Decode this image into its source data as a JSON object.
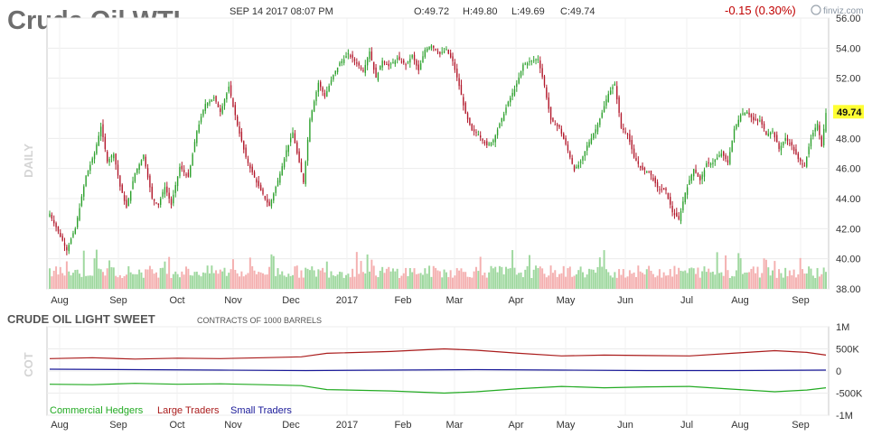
{
  "header": {
    "title": "Crude Oil WTI",
    "datetime": "SEP 14 2017 08:07 PM",
    "open": "O:49.72",
    "high": "H:49.80",
    "low": "L:49.69",
    "close": "C:49.74",
    "change": "-0.15 (0.30%)",
    "brand": "finviz.com",
    "period_label": "DAILY",
    "last_price": "49.74"
  },
  "colors": {
    "up": "#2ca02c",
    "down": "#b2182b",
    "volume_up": "#9fd89f",
    "volume_down": "#f4b0b0",
    "last_price_bg": "#ffff33",
    "change": "#c00000",
    "commercial": "#22aa22",
    "large": "#aa1c1c",
    "small": "#1a1a99"
  },
  "chart_data": [
    {
      "type": "candlestick",
      "ylim": [
        38,
        56
      ],
      "y_ticks": [
        "38.00",
        "40.00",
        "42.00",
        "44.00",
        "46.00",
        "48.00",
        "50.00",
        "52.00",
        "54.00",
        "56.00"
      ],
      "x_ticks": [
        "Aug",
        "Sep",
        "Oct",
        "Nov",
        "Dec",
        "2017",
        "Feb",
        "Mar",
        "Apr",
        "May",
        "Jun",
        "Jul",
        "Aug",
        "Sep"
      ],
      "grid": true,
      "close_anchors": [
        [
          0,
          43.0
        ],
        [
          4,
          41.8
        ],
        [
          8,
          40.6
        ],
        [
          12,
          42.0
        ],
        [
          17,
          45.5
        ],
        [
          21,
          47.0
        ],
        [
          24,
          48.8
        ],
        [
          27,
          46.5
        ],
        [
          30,
          47.0
        ],
        [
          33,
          44.8
        ],
        [
          36,
          43.4
        ],
        [
          40,
          45.7
        ],
        [
          44,
          46.9
        ],
        [
          48,
          44.0
        ],
        [
          51,
          43.6
        ],
        [
          54,
          44.8
        ],
        [
          57,
          43.6
        ],
        [
          61,
          46.1
        ],
        [
          65,
          45.4
        ],
        [
          69,
          48.5
        ],
        [
          73,
          50.3
        ],
        [
          77,
          50.7
        ],
        [
          80,
          49.8
        ],
        [
          84,
          51.4
        ],
        [
          88,
          48.9
        ],
        [
          92,
          46.7
        ],
        [
          96,
          45.4
        ],
        [
          99,
          44.5
        ],
        [
          103,
          43.5
        ],
        [
          107,
          45.2
        ],
        [
          111,
          47.2
        ],
        [
          114,
          48.4
        ],
        [
          116,
          47.0
        ],
        [
          119,
          45.1
        ],
        [
          122,
          49.3
        ],
        [
          126,
          51.7
        ],
        [
          129,
          50.8
        ],
        [
          133,
          52.2
        ],
        [
          136,
          53.0
        ],
        [
          140,
          53.6
        ],
        [
          144,
          53.0
        ],
        [
          147,
          52.5
        ],
        [
          150,
          53.8
        ],
        [
          153,
          52.0
        ],
        [
          156,
          53.2
        ],
        [
          159,
          52.8
        ],
        [
          163,
          53.3
        ],
        [
          167,
          52.9
        ],
        [
          170,
          53.5
        ],
        [
          173,
          52.5
        ],
        [
          176,
          53.9
        ],
        [
          179,
          54.2
        ],
        [
          183,
          53.6
        ],
        [
          186,
          53.9
        ],
        [
          189,
          53.1
        ],
        [
          192,
          51.5
        ],
        [
          195,
          49.6
        ],
        [
          198,
          48.5
        ],
        [
          201,
          48.3
        ],
        [
          205,
          47.5
        ],
        [
          208,
          47.9
        ],
        [
          212,
          49.3
        ],
        [
          215,
          50.4
        ],
        [
          219,
          51.6
        ],
        [
          222,
          52.9
        ],
        [
          225,
          53.1
        ],
        [
          229,
          53.3
        ],
        [
          232,
          51.5
        ],
        [
          235,
          49.2
        ],
        [
          239,
          48.7
        ],
        [
          243,
          47.2
        ],
        [
          246,
          45.9
        ],
        [
          249,
          46.4
        ],
        [
          252,
          47.5
        ],
        [
          256,
          48.6
        ],
        [
          259,
          49.7
        ],
        [
          262,
          51.0
        ],
        [
          265,
          51.6
        ],
        [
          268,
          48.7
        ],
        [
          271,
          48.3
        ],
        [
          274,
          46.7
        ],
        [
          278,
          45.9
        ],
        [
          281,
          45.8
        ],
        [
          285,
          44.7
        ],
        [
          289,
          44.5
        ],
        [
          292,
          43.1
        ],
        [
          295,
          42.6
        ],
        [
          298,
          44.4
        ],
        [
          302,
          46.0
        ],
        [
          305,
          45.2
        ],
        [
          308,
          46.3
        ],
        [
          311,
          46.4
        ],
        [
          315,
          47.0
        ],
        [
          318,
          46.4
        ],
        [
          321,
          48.6
        ],
        [
          324,
          49.6
        ],
        [
          327,
          49.8
        ],
        [
          330,
          49.2
        ],
        [
          333,
          49.2
        ],
        [
          336,
          48.3
        ],
        [
          339,
          48.5
        ],
        [
          342,
          47.3
        ],
        [
          345,
          48.0
        ],
        [
          348,
          47.5
        ],
        [
          351,
          46.6
        ],
        [
          354,
          46.2
        ],
        [
          357,
          48.0
        ],
        [
          360,
          49.0
        ],
        [
          362,
          47.5
        ],
        [
          364,
          49.74
        ]
      ]
    },
    {
      "type": "line",
      "title": "CRUDE OIL LIGHT SWEET",
      "subtitle": "CONTRACTS OF 1000 BARRELS",
      "axis_label": "COT",
      "ylim": [
        -1000000,
        1000000
      ],
      "y_ticks": [
        "1M",
        "500K",
        "0",
        "-500K",
        "-1M"
      ],
      "x_ticks": [
        "Aug",
        "Sep",
        "Oct",
        "Nov",
        "Dec",
        "2017",
        "Feb",
        "Mar",
        "Apr",
        "May",
        "Jun",
        "Jul",
        "Aug",
        "Sep"
      ],
      "series": [
        {
          "name": "Commercial Hedgers",
          "points": [
            [
              0,
              -300000
            ],
            [
              20,
              -310000
            ],
            [
              40,
              -280000
            ],
            [
              60,
              -300000
            ],
            [
              80,
              -290000
            ],
            [
              100,
              -310000
            ],
            [
              118,
              -330000
            ],
            [
              130,
              -420000
            ],
            [
              160,
              -450000
            ],
            [
              185,
              -500000
            ],
            [
              200,
              -470000
            ],
            [
              220,
              -400000
            ],
            [
              240,
              -350000
            ],
            [
              260,
              -380000
            ],
            [
              280,
              -360000
            ],
            [
              300,
              -350000
            ],
            [
              320,
              -410000
            ],
            [
              340,
              -470000
            ],
            [
              355,
              -430000
            ],
            [
              365,
              -380000
            ]
          ]
        },
        {
          "name": "Large Traders",
          "points": [
            [
              0,
              280000
            ],
            [
              20,
              300000
            ],
            [
              40,
              270000
            ],
            [
              60,
              290000
            ],
            [
              80,
              280000
            ],
            [
              100,
              300000
            ],
            [
              118,
              320000
            ],
            [
              130,
              400000
            ],
            [
              160,
              440000
            ],
            [
              185,
              500000
            ],
            [
              200,
              470000
            ],
            [
              220,
              400000
            ],
            [
              240,
              340000
            ],
            [
              260,
              360000
            ],
            [
              280,
              350000
            ],
            [
              300,
              340000
            ],
            [
              320,
              400000
            ],
            [
              340,
              460000
            ],
            [
              355,
              420000
            ],
            [
              365,
              360000
            ]
          ]
        },
        {
          "name": "Small Traders",
          "points": [
            [
              0,
              40000
            ],
            [
              40,
              30000
            ],
            [
              80,
              20000
            ],
            [
              120,
              10000
            ],
            [
              160,
              20000
            ],
            [
              200,
              30000
            ],
            [
              240,
              20000
            ],
            [
              280,
              10000
            ],
            [
              320,
              10000
            ],
            [
              365,
              20000
            ]
          ]
        }
      ]
    }
  ]
}
